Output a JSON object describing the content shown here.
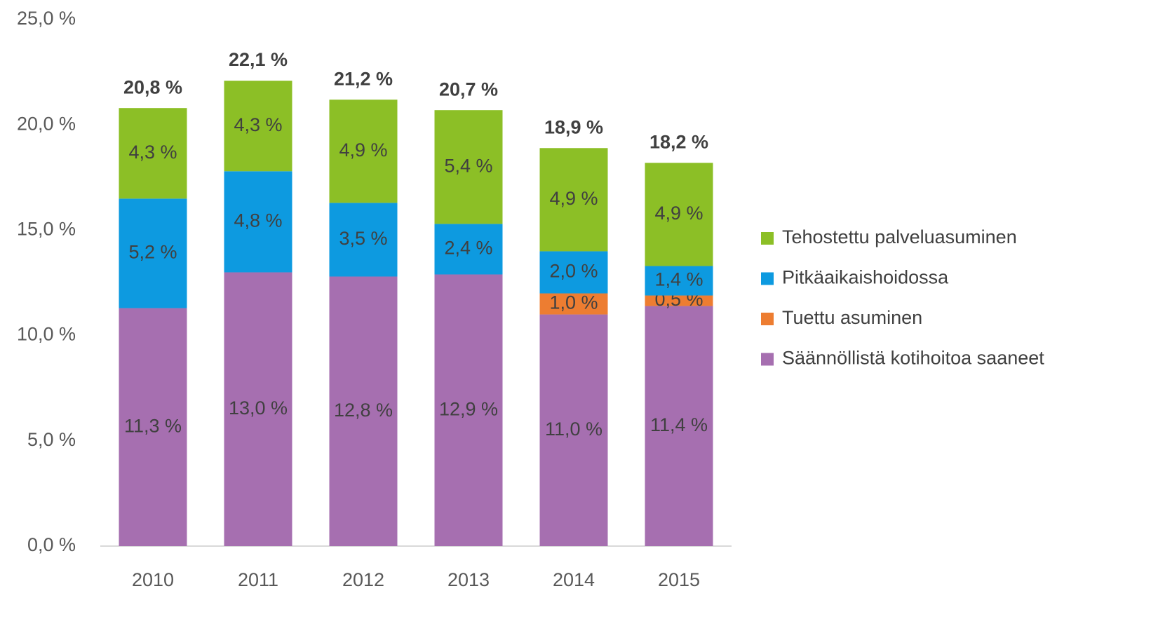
{
  "chart_data": {
    "type": "stacked_bar",
    "categories": [
      "2010",
      "2011",
      "2012",
      "2013",
      "2014",
      "2015"
    ],
    "series": [
      {
        "name": "Säännöllistä kotihoitoa saaneet",
        "color": "#a66fb0",
        "values": [
          11.3,
          13.0,
          12.8,
          12.9,
          11.0,
          11.4
        ],
        "value_labels": [
          "11,3 %",
          "13,0 %",
          "12,8 %",
          "12,9 %",
          "11,0 %",
          "11,4 %"
        ]
      },
      {
        "name": "Tuettu asuminen",
        "color": "#ed7d31",
        "values": [
          null,
          null,
          null,
          null,
          1.0,
          0.5
        ],
        "value_labels": [
          null,
          null,
          null,
          null,
          "1,0 %",
          "0,5 %"
        ]
      },
      {
        "name": "Pitkäaikaishoidossa",
        "color": "#0d9ae0",
        "values": [
          5.2,
          4.8,
          3.5,
          2.4,
          2.0,
          1.4
        ],
        "value_labels": [
          "5,2 %",
          "4,8 %",
          "3,5 %",
          "2,4 %",
          "2,0 %",
          "1,4 %"
        ]
      },
      {
        "name": "Tehostettu palveluasuminen",
        "color": "#8cbf26",
        "values": [
          4.3,
          4.3,
          4.9,
          5.4,
          4.9,
          4.9
        ],
        "value_labels": [
          "4,3 %",
          "4,3 %",
          "4,9 %",
          "5,4 %",
          "4,9 %",
          "4,9 %"
        ]
      }
    ],
    "totals": [
      20.8,
      22.1,
      21.2,
      20.7,
      18.9,
      18.2
    ],
    "total_labels": [
      "20,8 %",
      "22,1 %",
      "21,2 %",
      "20,7 %",
      "18,9 %",
      "18,2 %"
    ],
    "ylim": [
      0,
      25
    ],
    "yticks": [
      {
        "value": 0,
        "label": "0,0 %"
      },
      {
        "value": 5,
        "label": "5,0 %"
      },
      {
        "value": 10,
        "label": "10,0 %"
      },
      {
        "value": 15,
        "label": "15,0 %"
      },
      {
        "value": 20,
        "label": "20,0 %"
      },
      {
        "value": 25,
        "label": "25,0 %"
      }
    ],
    "legend": "right"
  }
}
